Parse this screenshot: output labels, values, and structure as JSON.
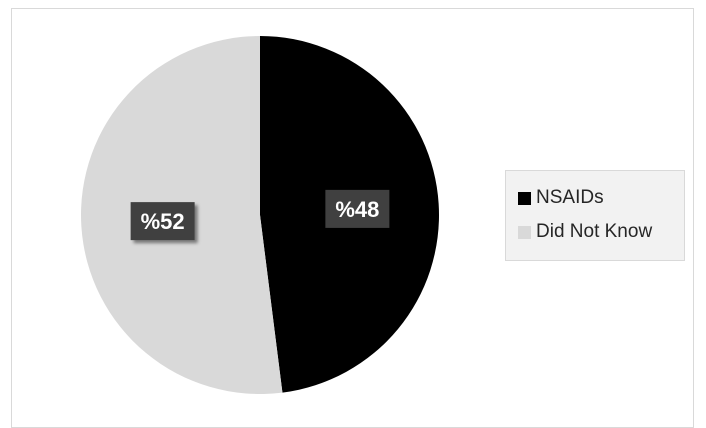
{
  "chart_data": {
    "type": "pie",
    "title": "",
    "categories": [
      "NSAIDs",
      "Did Not Know"
    ],
    "values": [
      48,
      52
    ],
    "data_labels": [
      "%48",
      "%52"
    ],
    "colors": [
      "#000000",
      "#d9d9d9"
    ],
    "legend_position": "right",
    "start_angle": "12 o'clock",
    "direction": "clockwise"
  },
  "legend": {
    "items": [
      {
        "label": "NSAIDs",
        "color": "#000000"
      },
      {
        "label": "Did Not Know",
        "color": "#d9d9d9"
      }
    ]
  }
}
